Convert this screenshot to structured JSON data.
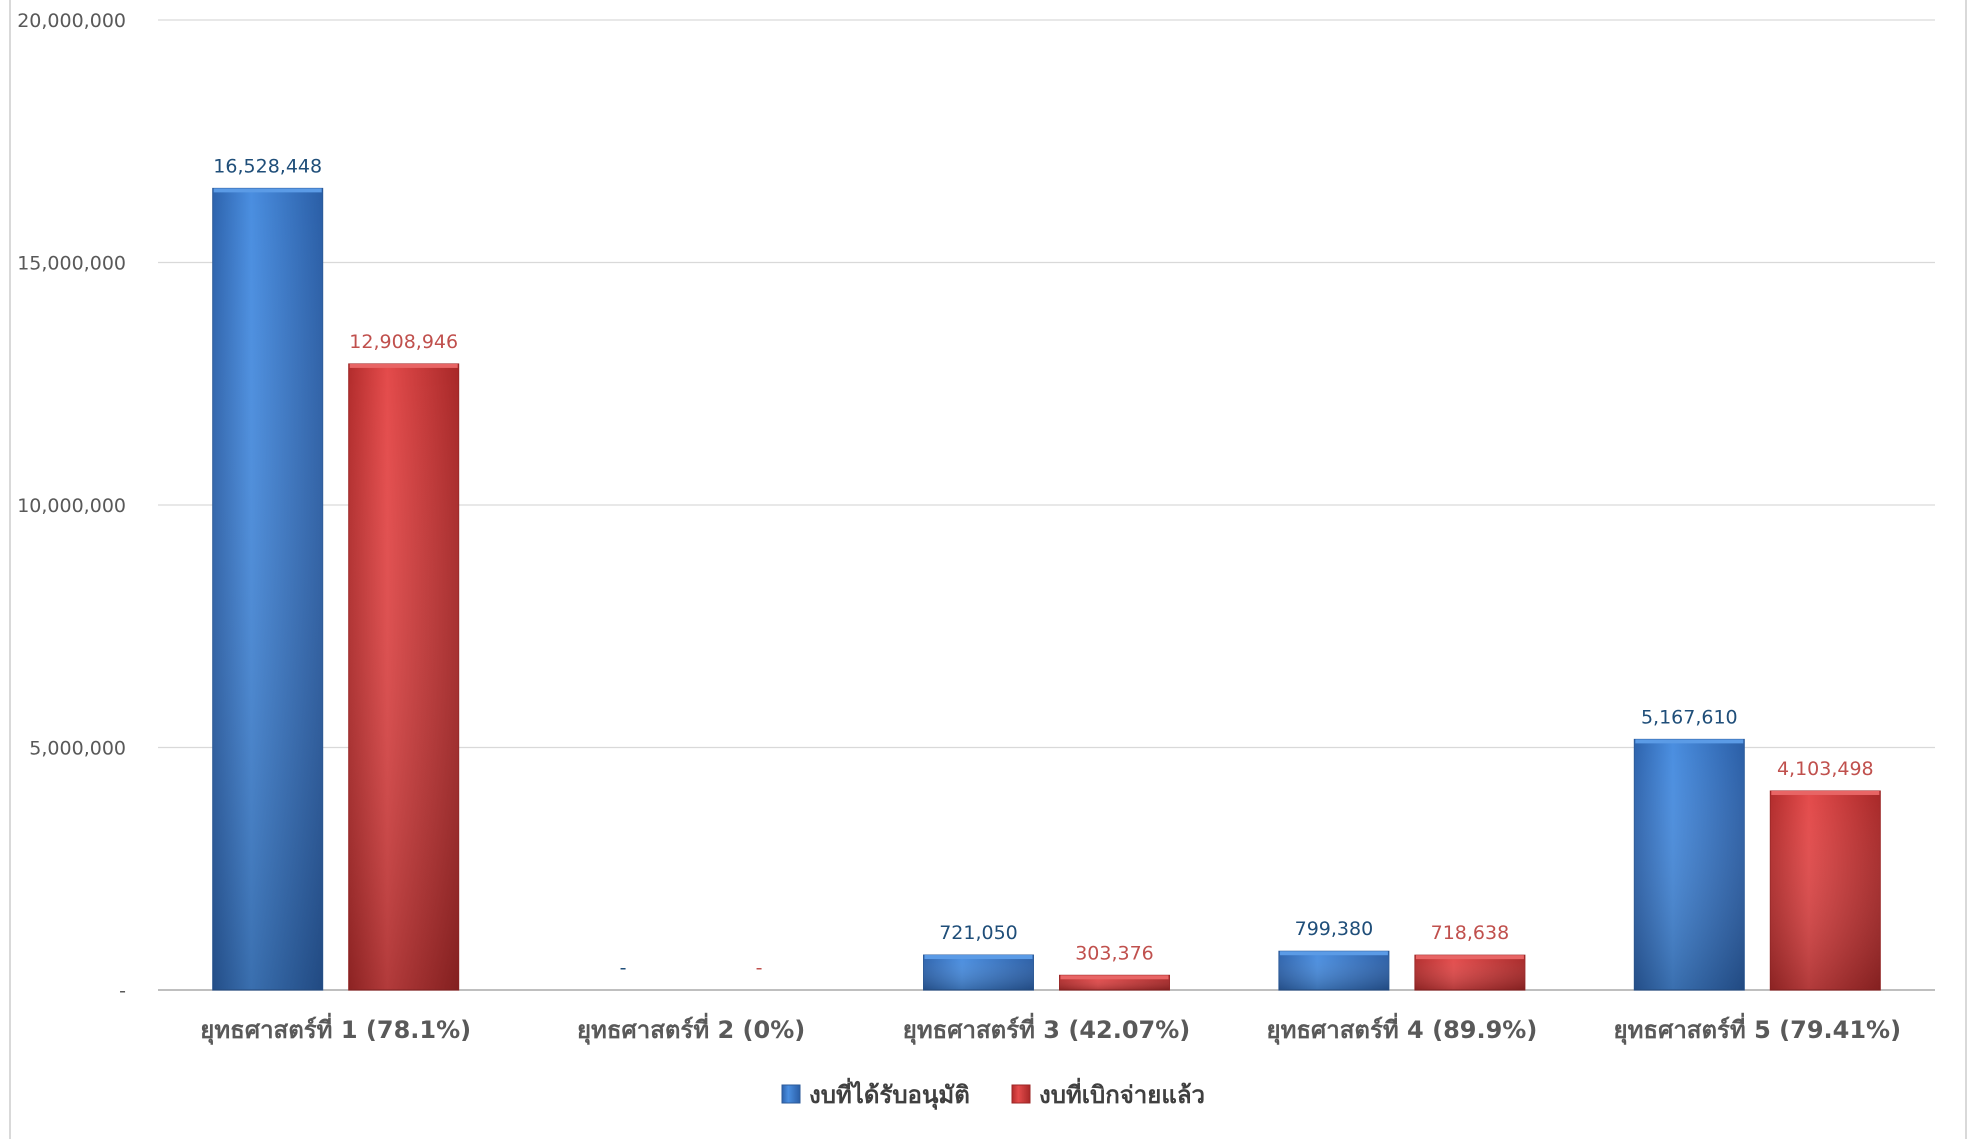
{
  "chart_data": {
    "type": "bar",
    "categories": [
      "ยุทธศาสตร์ที่ 1 (78.1%)",
      "ยุทธศาสตร์ที่ 2 (0%)",
      "ยุทธศาสตร์ที่ 3 (42.07%)",
      "ยุทธศาสตร์ที่ 4 (89.9%)",
      "ยุทธศาสตร์ที่ 5 (79.41%)"
    ],
    "series": [
      {
        "name": "งบที่ได้รับอนุมัติ",
        "values": [
          16528448,
          0,
          721050,
          799380,
          5167610
        ],
        "labels": [
          "16,528,448",
          "-",
          "721,050",
          "799,380",
          "5,167,610"
        ],
        "color": "#3a78c9",
        "label_color": "#1f4e79"
      },
      {
        "name": "งบที่เบิกจ่ายแล้ว",
        "values": [
          12908946,
          0,
          303376,
          718638,
          4103498
        ],
        "labels": [
          "12,908,946",
          "-",
          "303,376",
          "718,638",
          "4,103,498"
        ],
        "color": "#d23c3c",
        "label_color": "#c0504d"
      }
    ],
    "yticks": [
      {
        "value": 0,
        "label": "-"
      },
      {
        "value": 5000000,
        "label": "5,000,000"
      },
      {
        "value": 10000000,
        "label": "10,000,000"
      },
      {
        "value": 15000000,
        "label": "15,000,000"
      },
      {
        "value": 20000000,
        "label": "20,000,000"
      }
    ],
    "ylim": [
      0,
      20000000
    ],
    "grid": true,
    "legend_position": "bottom",
    "title": "",
    "xlabel": "",
    "ylabel": ""
  }
}
